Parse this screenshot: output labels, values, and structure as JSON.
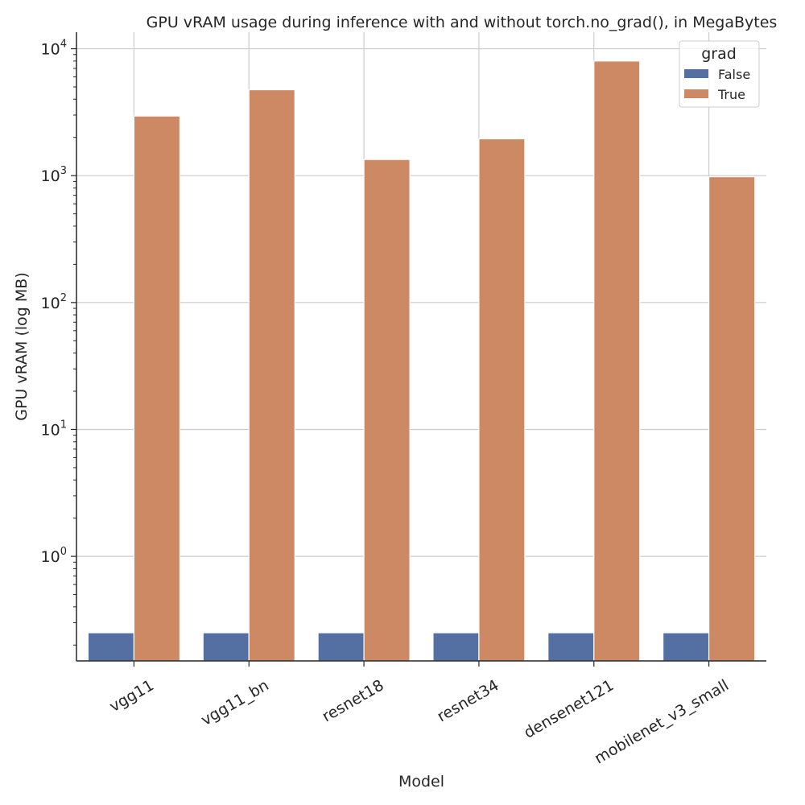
{
  "chart_data": {
    "type": "bar",
    "title": "GPU vRAM usage during inference with and without torch.no_grad(), in MegaBytes",
    "xlabel": "Model",
    "ylabel": "GPU vRAM (log MB)",
    "yscale": "log",
    "ylim": [
      0.15,
      13500
    ],
    "yticks": [
      {
        "value": 1,
        "base": "10",
        "exp": "0"
      },
      {
        "value": 10,
        "base": "10",
        "exp": "1"
      },
      {
        "value": 100,
        "base": "10",
        "exp": "2"
      },
      {
        "value": 1000,
        "base": "10",
        "exp": "3"
      },
      {
        "value": 10000,
        "base": "10",
        "exp": "4"
      }
    ],
    "grid": true,
    "categories": [
      "vgg11",
      "vgg11_bn",
      "resnet18",
      "resnet34",
      "densenet121",
      "mobilenet_v3_small"
    ],
    "series": [
      {
        "name": "False",
        "color": "#5470a3",
        "values": [
          0.25,
          0.25,
          0.25,
          0.25,
          0.25,
          0.25
        ]
      },
      {
        "name": "True",
        "color": "#cd8963",
        "values": [
          2950,
          4750,
          1340,
          1950,
          8000,
          980
        ]
      }
    ],
    "legend": {
      "title": "grad",
      "position": "top-right"
    }
  }
}
